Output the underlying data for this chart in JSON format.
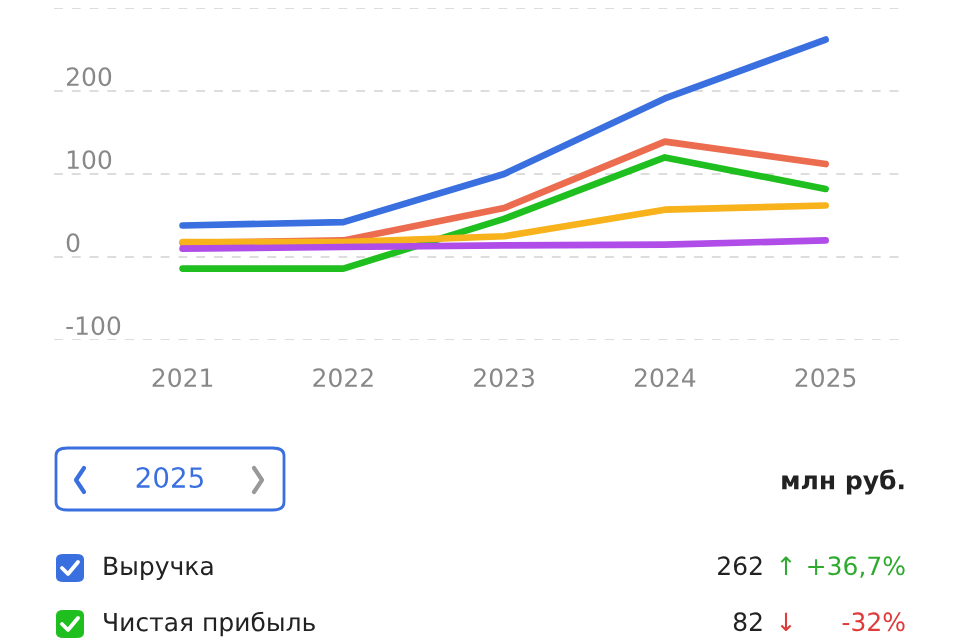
{
  "chart_data": {
    "type": "line",
    "x": [
      2021,
      2022,
      2023,
      2024,
      2025
    ],
    "xlim": [
      2020.2,
      2025.5
    ],
    "xticks": [
      2021,
      2022,
      2023,
      2024,
      2025
    ],
    "ylim": [
      -100,
      300
    ],
    "yticks": [
      -100,
      0,
      100,
      200,
      {
        "value": 300,
        "label": null
      }
    ],
    "grid": "y",
    "legend": "bottom",
    "marker": "none",
    "line_style": "solid",
    "series": [
      {
        "name": "Выручка",
        "color": "#3a6fe0",
        "values": [
          38,
          42,
          100,
          191,
          262
        ]
      },
      {
        "color": "#ec6c4f",
        "values": [
          17,
          20,
          59,
          139,
          112
        ]
      },
      {
        "name": "Чистая прибыль",
        "color": "#1fbf1f",
        "values": [
          -14,
          -14,
          46,
          120,
          82
        ]
      },
      {
        "color": "#f7b21c",
        "values": [
          18,
          18,
          25,
          57,
          62
        ]
      },
      {
        "color": "#b04de8",
        "values": [
          10,
          12,
          14,
          15,
          20
        ]
      }
    ],
    "annotations": [
      "2025",
      "млн руб.",
      "262",
      "↑",
      "+36,7%",
      "82",
      "↓",
      "-32%"
    ]
  }
}
